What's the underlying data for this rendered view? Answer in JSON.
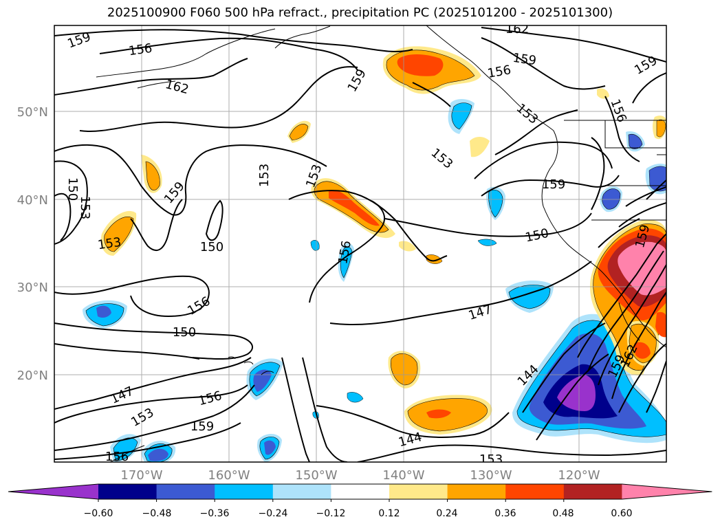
{
  "title": "2025100900 F060 500 hPa refract., precipitation PC (2025101200 - 2025101300)",
  "lat_labels": [
    "50°N",
    "40°N",
    "30°N",
    "20°N"
  ],
  "lon_labels": [
    "170°W",
    "160°W",
    "150°W",
    "140°W",
    "130°W",
    "120°W"
  ],
  "colorbar": {
    "colors": [
      "#9932cc",
      "#00008b",
      "#3c5ad2",
      "#00bfff",
      "#aee3fb",
      "#ffffff",
      "#ffe98a",
      "#ffa500",
      "#ff4500",
      "#b22222",
      "#ff82ab"
    ],
    "ticks": [
      "−0.60",
      "−0.48",
      "−0.36",
      "−0.24",
      "−0.12",
      "0.12",
      "0.24",
      "0.36",
      "0.48",
      "0.60"
    ]
  },
  "contour_labels": [
    {
      "text": "159"
    },
    {
      "text": "156"
    },
    {
      "text": "162"
    },
    {
      "text": "159"
    },
    {
      "text": "162"
    },
    {
      "text": "159"
    },
    {
      "text": "156"
    },
    {
      "text": "159"
    },
    {
      "text": "153"
    },
    {
      "text": "159"
    },
    {
      "text": "153"
    },
    {
      "text": "153"
    },
    {
      "text": "156"
    },
    {
      "text": "150"
    },
    {
      "text": "153"
    },
    {
      "text": "153"
    },
    {
      "text": "150"
    },
    {
      "text": "159"
    },
    {
      "text": "150"
    },
    {
      "text": "156"
    },
    {
      "text": "153"
    },
    {
      "text": "150"
    },
    {
      "text": "156"
    },
    {
      "text": "147"
    },
    {
      "text": "156"
    },
    {
      "text": "147"
    },
    {
      "text": "153"
    },
    {
      "text": "159"
    },
    {
      "text": "144"
    },
    {
      "text": "144"
    },
    {
      "text": "162"
    },
    {
      "text": "159"
    },
    {
      "text": "156"
    },
    {
      "text": "153"
    },
    {
      "text": "159"
    }
  ]
}
